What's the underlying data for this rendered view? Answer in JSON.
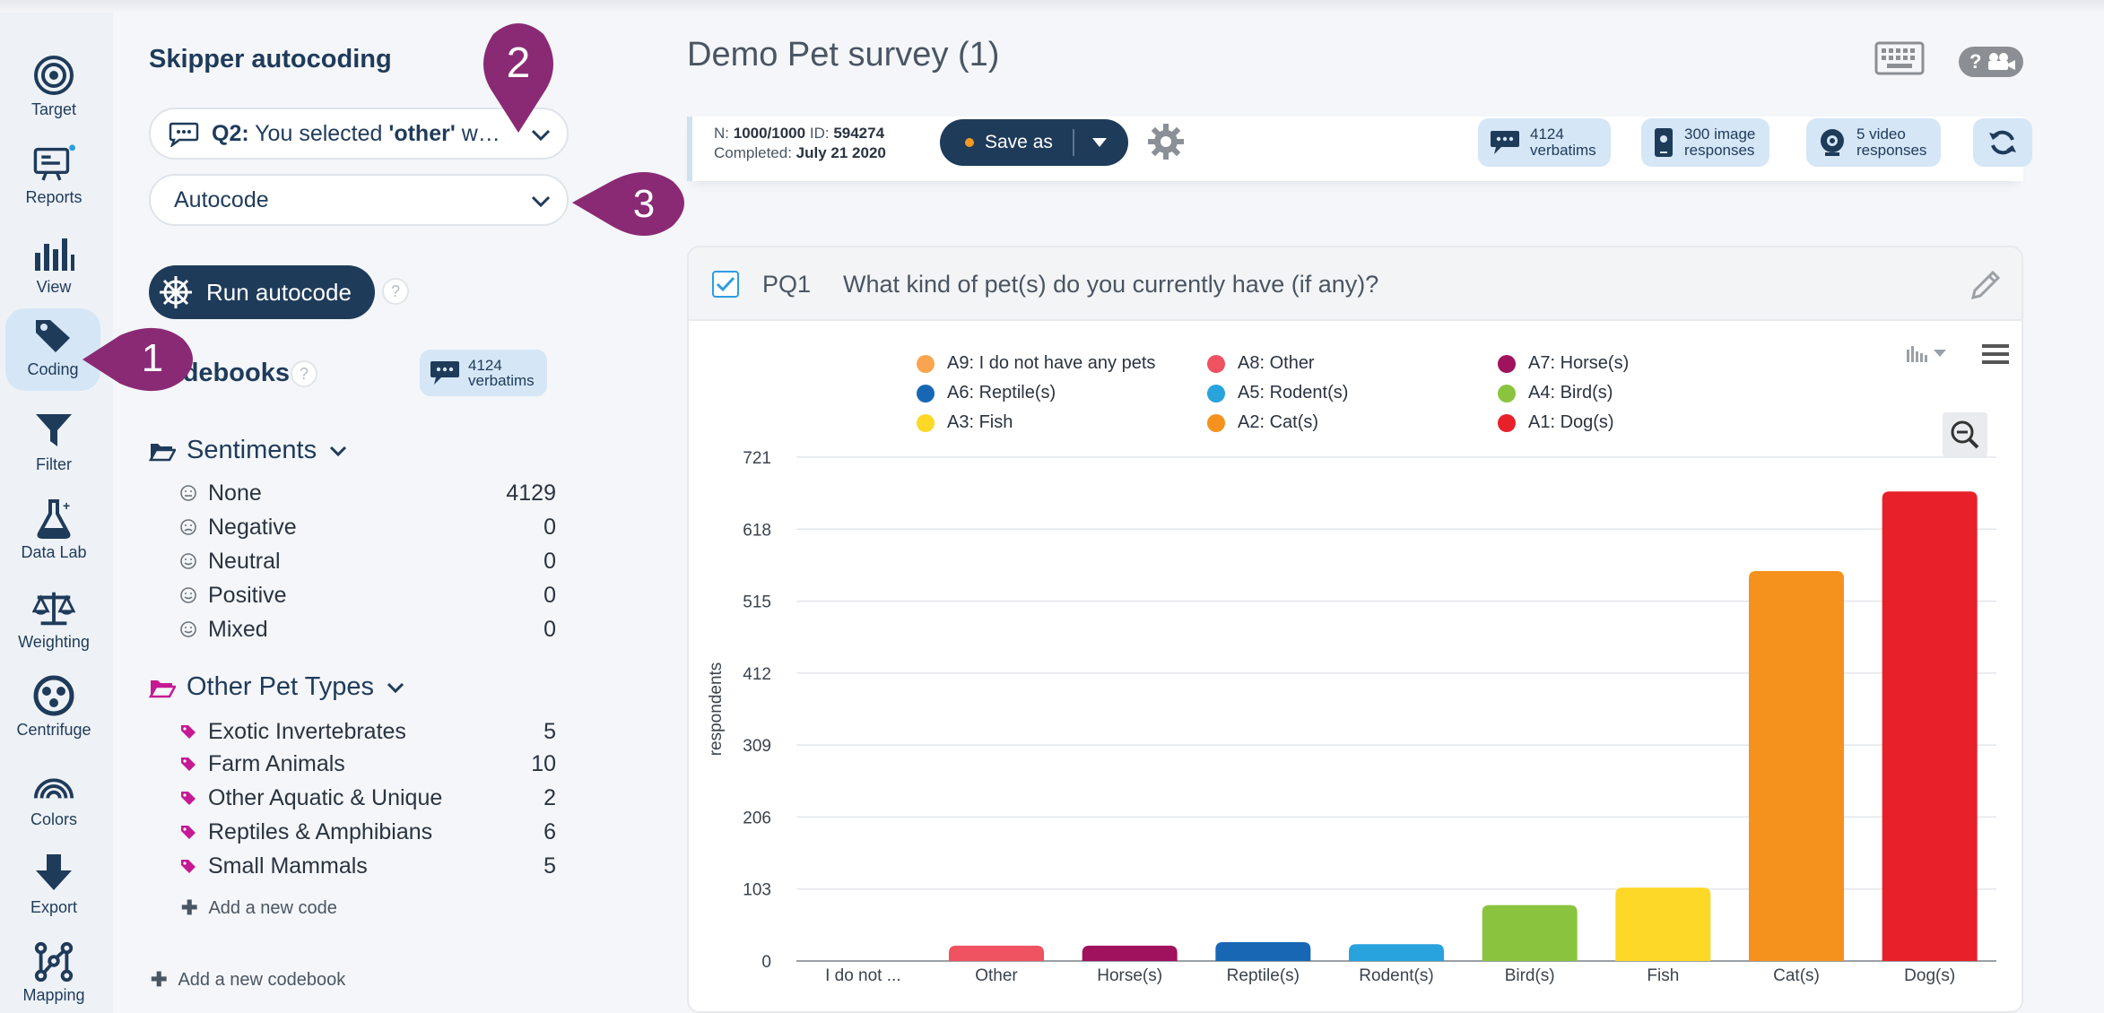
{
  "nav": {
    "items": [
      {
        "label": "Target",
        "icon": "target-icon"
      },
      {
        "label": "Reports",
        "icon": "reports-icon"
      },
      {
        "label": "View",
        "icon": "bar-chart-icon"
      },
      {
        "label": "Coding",
        "icon": "tags-icon"
      },
      {
        "label": "Filter",
        "icon": "filter-icon"
      },
      {
        "label": "Data Lab",
        "icon": "flask-icon"
      },
      {
        "label": "Weighting",
        "icon": "scale-icon"
      },
      {
        "label": "Centrifuge",
        "icon": "centrifuge-icon"
      },
      {
        "label": "Colors",
        "icon": "rainbow-icon"
      },
      {
        "label": "Export",
        "icon": "download-icon"
      },
      {
        "label": "Mapping",
        "icon": "mapping-icon"
      }
    ],
    "active": "Coding"
  },
  "panel": {
    "title": "Skipper autocoding",
    "question_select": {
      "prefix": "Q2:",
      "text": " You selected ",
      "bold": "'other'",
      "suffix": " w…"
    },
    "mode_select": "Autocode",
    "run_label": "Run autocode",
    "help": "?",
    "codebooks_title": "odebooks",
    "verbatims": {
      "count": "4124",
      "label": "verbatims"
    },
    "sentiments": {
      "title": "Sentiments",
      "rows": [
        {
          "label": "None",
          "count": "4129"
        },
        {
          "label": "Negative",
          "count": "0"
        },
        {
          "label": "Neutral",
          "count": "0"
        },
        {
          "label": "Positive",
          "count": "0"
        },
        {
          "label": "Mixed",
          "count": "0"
        }
      ]
    },
    "other_pet_types": {
      "title": "Other Pet Types",
      "rows": [
        {
          "label": "Exotic Invertebrates",
          "count": "5"
        },
        {
          "label": "Farm Animals",
          "count": "10"
        },
        {
          "label": "Other Aquatic & Unique",
          "count": "2"
        },
        {
          "label": "Reptiles & Amphibians",
          "count": "6"
        },
        {
          "label": "Small Mammals",
          "count": "5"
        }
      ]
    },
    "add_code": "Add a new code",
    "add_codebook": "Add a new codebook"
  },
  "markers": {
    "m1": "1",
    "m2": "2",
    "m3": "3"
  },
  "main": {
    "title": "Demo Pet survey (1)",
    "info": {
      "n_label": "N:",
      "n_value": "1000/1000",
      "id_label": "ID:",
      "id_value": "594274",
      "completed_label": "Completed:",
      "completed_value": "July 21 2020"
    },
    "save_as": "Save as",
    "verbatims": {
      "count": "4124",
      "label": "verbatims"
    },
    "image_responses": {
      "count": "300 image",
      "label": "responses"
    },
    "video_responses": {
      "count": "5 video",
      "label": "responses"
    },
    "help_badge": "?"
  },
  "question": {
    "code": "PQ1",
    "text": "What kind of pet(s) do you currently have (if any)?"
  },
  "colors": {
    "navy": "#1f3b5a",
    "accent_blue": "#2d9de0",
    "pill_bg": "#d5e6f6",
    "tag_magenta": "#c51a94"
  },
  "chart_data": {
    "type": "bar",
    "ylabel": "respondents",
    "ylim": [
      0,
      721
    ],
    "yticks": [
      0,
      103,
      206,
      309,
      412,
      515,
      618,
      721
    ],
    "categories": [
      "I do not ...",
      "Other",
      "Horse(s)",
      "Reptile(s)",
      "Rodent(s)",
      "Bird(s)",
      "Fish",
      "Cat(s)",
      "Dog(s)"
    ],
    "values": [
      0,
      22,
      22,
      27,
      24,
      80,
      105,
      558,
      672
    ],
    "bar_colors": [
      "#f9a550",
      "#ef5260",
      "#a0125e",
      "#1767b4",
      "#29a3dc",
      "#8ac43f",
      "#fdd826",
      "#f5921e",
      "#e8202a"
    ],
    "legend": [
      {
        "label": "A9: I do not have any pets",
        "color": "#f9a550"
      },
      {
        "label": "A8: Other",
        "color": "#ef5260"
      },
      {
        "label": "A7: Horse(s)",
        "color": "#a0125e"
      },
      {
        "label": "A6: Reptile(s)",
        "color": "#1767b4"
      },
      {
        "label": "A5: Rodent(s)",
        "color": "#29a3dc"
      },
      {
        "label": "A4: Bird(s)",
        "color": "#8ac43f"
      },
      {
        "label": "A3: Fish",
        "color": "#fdd826"
      },
      {
        "label": "A2: Cat(s)",
        "color": "#f5921e"
      },
      {
        "label": "A1: Dog(s)",
        "color": "#e8202a"
      }
    ],
    "grid": true,
    "legend_position": "top"
  }
}
